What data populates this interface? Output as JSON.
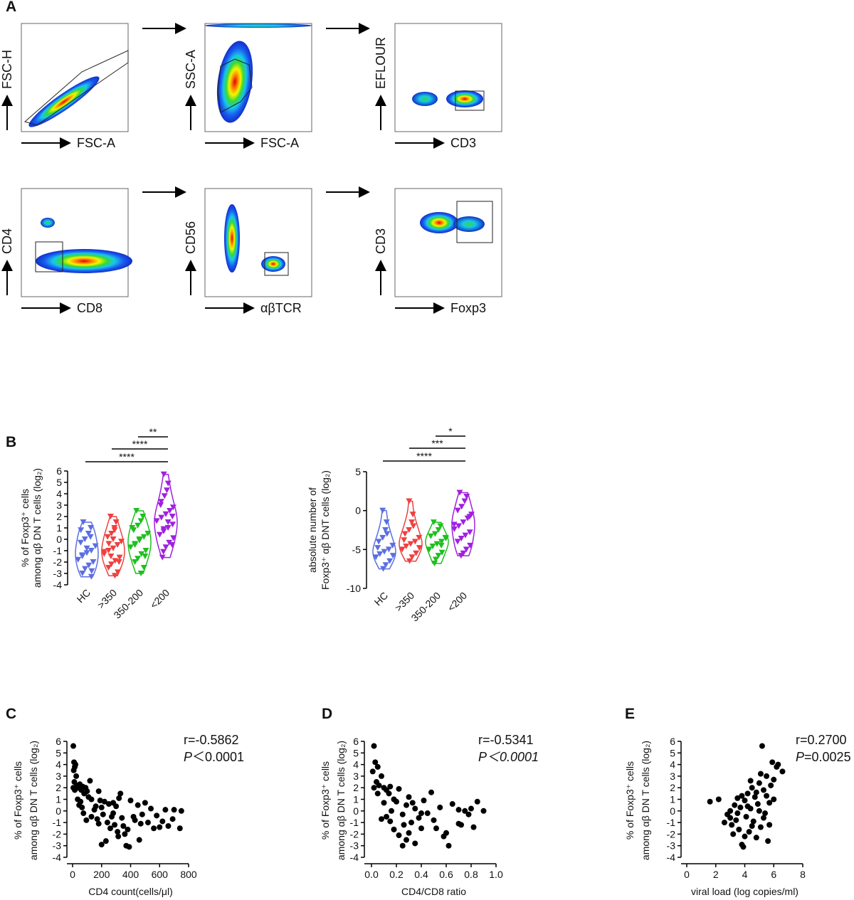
{
  "panel_labels": [
    "A",
    "B",
    "C",
    "D",
    "E"
  ],
  "flow_panels": [
    {
      "x_label": "FSC-A",
      "y_label": "FSC-H"
    },
    {
      "x_label": "FSC-A",
      "y_label": "SSC-A"
    },
    {
      "x_label": "CD3",
      "y_label": "EFLOUR"
    },
    {
      "x_label": "CD8",
      "y_label": "CD4"
    },
    {
      "x_label": "αβTCR",
      "y_label": "CD56"
    },
    {
      "x_label": "Foxp3",
      "y_label": "CD3"
    }
  ],
  "chart_data": [
    {
      "type": "violin",
      "y_label": [
        "% of Foxp3⁺ cells",
        "among αβ DN T cells (log₂)"
      ],
      "categories": [
        "HC",
        ">350",
        "350-200",
        "<200"
      ],
      "colors": [
        "#5b6ee1",
        "#ef4040",
        "#1fbf1f",
        "#a020e0"
      ],
      "values": [
        [
          1.5,
          1.0,
          0.5,
          0,
          -0.3,
          -0.6,
          -1.0,
          -1.2,
          -1.5,
          -1.8,
          -2.0,
          -2.3,
          -2.6,
          -3.0,
          -3.3,
          0.2,
          -0.8,
          -1.4,
          0.8,
          -2.8
        ],
        [
          2.0,
          1.5,
          1.0,
          0.5,
          0.2,
          -0.2,
          -0.5,
          -0.8,
          -1.0,
          -1.3,
          -1.6,
          -1.9,
          -2.2,
          -2.5,
          -2.9,
          -3.2,
          0.0,
          -0.4,
          -1.1,
          -2.0,
          0.8,
          -1.5
        ],
        [
          2.5,
          2.0,
          1.6,
          1.2,
          0.8,
          0.5,
          0.2,
          -0.1,
          -0.4,
          -0.7,
          -1.0,
          -1.3,
          -1.7,
          -2.0,
          -2.5,
          -3.0,
          0.0,
          -0.5,
          1.0,
          -1.5
        ],
        [
          5.7,
          4.9,
          4.3,
          3.8,
          3.3,
          2.8,
          2.5,
          2.2,
          1.9,
          1.6,
          1.3,
          1.0,
          0.7,
          0.4,
          0.1,
          -0.3,
          -0.7,
          -1.1,
          -1.6,
          2.0,
          1.5,
          0.9,
          3.0,
          -0.5
        ]
      ],
      "comparisons": [
        {
          "groups": [
            2,
            3
          ],
          "label": "**"
        },
        {
          "groups": [
            1,
            3
          ],
          "label": "****"
        },
        {
          "groups": [
            0,
            3
          ],
          "label": "****"
        }
      ],
      "ylim": [
        -4,
        6
      ],
      "yticks": [
        -4,
        -3,
        -2,
        -1,
        0,
        1,
        2,
        3,
        4,
        5,
        6
      ]
    },
    {
      "type": "violin",
      "y_label": [
        "absolute number of",
        "Foxp3⁺ αβ DNT cells (log₂)"
      ],
      "categories": [
        "HC",
        ">350",
        "350-200",
        "<200"
      ],
      "colors": [
        "#5b6ee1",
        "#ef4040",
        "#1fbf1f",
        "#a020e0"
      ],
      "values": [
        [
          0.0,
          -1.5,
          -2.5,
          -3.5,
          -4.0,
          -4.5,
          -5.0,
          -5.3,
          -5.6,
          -6.0,
          -6.5,
          -7.0,
          -7.5,
          -4.8,
          -5.8,
          -3.0
        ],
        [
          1.2,
          -0.5,
          -1.5,
          -2.5,
          -3.0,
          -3.5,
          -4.0,
          -4.3,
          -4.6,
          -5.0,
          -5.5,
          -6.0,
          -6.5,
          -3.8,
          -4.8,
          -2.0
        ],
        [
          -1.5,
          -2.0,
          -2.5,
          -3.0,
          -3.3,
          -3.6,
          -4.0,
          -4.3,
          -4.6,
          -5.0,
          -5.4,
          -5.8,
          -6.3,
          -6.8,
          -3.5,
          -4.5
        ],
        [
          2.3,
          1.8,
          1.2,
          0.5,
          0.0,
          -0.5,
          -1.0,
          -1.5,
          -2.0,
          -2.4,
          -2.8,
          -3.2,
          -3.6,
          -4.0,
          -4.5,
          -5.0,
          -5.5,
          -5.8,
          -1.8,
          -0.8
        ]
      ],
      "comparisons": [
        {
          "groups": [
            2,
            3
          ],
          "label": "*"
        },
        {
          "groups": [
            1,
            3
          ],
          "label": "***"
        },
        {
          "groups": [
            0,
            3
          ],
          "label": "****"
        }
      ],
      "ylim": [
        -10,
        5
      ],
      "yticks": [
        -10,
        -5,
        0,
        5
      ]
    },
    {
      "type": "scatter",
      "x_label": "CD4 count(cells/μl)",
      "y_label": [
        "% of Foxp3⁺ cells",
        "among αβ DN T cells (log₂)"
      ],
      "r_text": "r=-0.5862",
      "p_symbol": "P",
      "p_text": "＜0.0001",
      "p_italic": false,
      "color": "#000000",
      "x": [
        5,
        10,
        15,
        8,
        20,
        25,
        12,
        30,
        40,
        50,
        60,
        70,
        80,
        90,
        100,
        110,
        120,
        35,
        45,
        15,
        5,
        55,
        65,
        75,
        95,
        130,
        150,
        170,
        190,
        200,
        210,
        220,
        240,
        250,
        260,
        270,
        280,
        290,
        300,
        310,
        320,
        330,
        340,
        350,
        360,
        370,
        380,
        390,
        400,
        420,
        430,
        450,
        470,
        480,
        500,
        520,
        540,
        560,
        580,
        600,
        620,
        640,
        660,
        690,
        740,
        750,
        700,
        130,
        160,
        180,
        280,
        315,
        230,
        460,
        180,
        200
      ],
      "values": [
        5.6,
        4.2,
        3.8,
        3.5,
        4.0,
        3.0,
        2.5,
        2.2,
        2.0,
        2.3,
        1.8,
        2.1,
        1.5,
        2.0,
        1.7,
        1.2,
        2.6,
        1.0,
        0.5,
        1.8,
        2.0,
        0.8,
        0.3,
        -0.2,
        -0.8,
        -0.5,
        0.1,
        -0.7,
        0.9,
        0.3,
        -0.3,
        0.8,
        -1.0,
        0.6,
        -1.5,
        -0.5,
        -0.2,
        -1.2,
        0.4,
        -1.8,
        1.1,
        1.5,
        -0.6,
        -1.3,
        -2.0,
        -3.0,
        -1.6,
        -3.1,
        0.9,
        -0.5,
        -0.8,
        0.5,
        -1.1,
        -0.3,
        0.7,
        -1.0,
        0.2,
        -1.5,
        -0.4,
        -1.4,
        -0.9,
        0.1,
        -1.3,
        -0.7,
        -1.5,
        0.0,
        0.1,
        1.0,
        0.4,
        1.7,
        0.7,
        -2.2,
        -2.6,
        -2.5,
        -1.1,
        -2.9
      ],
      "xlim": [
        0,
        800
      ],
      "xticks": [
        0,
        200,
        400,
        600,
        800
      ],
      "ylim": [
        -4,
        6
      ],
      "yticks": [
        -4,
        -3,
        -2,
        -1,
        0,
        1,
        2,
        3,
        4,
        5,
        6
      ]
    },
    {
      "type": "scatter",
      "x_label": "CD4/CD8 ratio",
      "y_label": [
        "% of Foxp3⁺ cells",
        "among αβ DN T cells (log₂)"
      ],
      "r_text": "r=-0.5341",
      "p_symbol": "P",
      "p_text": "＜0.0001",
      "p_italic": true,
      "color": "#000000",
      "x": [
        0.02,
        0.03,
        0.05,
        0.01,
        0.08,
        0.04,
        0.06,
        0.1,
        0.12,
        0.02,
        0.05,
        0.15,
        0.18,
        0.2,
        0.22,
        0.25,
        0.28,
        0.3,
        0.32,
        0.35,
        0.38,
        0.4,
        0.42,
        0.45,
        0.48,
        0.5,
        0.55,
        0.6,
        0.62,
        0.65,
        0.7,
        0.72,
        0.75,
        0.8,
        0.82,
        0.9,
        0.78,
        0.12,
        0.15,
        0.18,
        0.22,
        0.25,
        0.28,
        0.3,
        0.35,
        0.08,
        0.1,
        0.14,
        0.16,
        0.26,
        0.33,
        0.4,
        0.52,
        0.58,
        0.85,
        0.7
      ],
      "values": [
        5.6,
        4.2,
        3.8,
        3.4,
        3.0,
        2.5,
        2.2,
        2.0,
        1.8,
        2.0,
        1.5,
        2.1,
        1.0,
        0.8,
        1.9,
        -0.3,
        0.5,
        1.2,
        -1.0,
        0.2,
        -0.6,
        -1.5,
        0.9,
        -0.2,
        1.6,
        -0.8,
        0.3,
        -1.9,
        -3.0,
        0.6,
        0.1,
        -1.2,
        0.0,
        0.2,
        -1.4,
        0.0,
        -0.3,
        -0.5,
        -0.9,
        -1.6,
        -2.1,
        -3.0,
        -2.5,
        -1.9,
        -2.8,
        -0.7,
        0.7,
        1.5,
        0.0,
        -1.2,
        0.7,
        -0.2,
        -1.5,
        -2.2,
        0.8,
        -1.1
      ],
      "xlim": [
        0,
        1
      ],
      "xticks": [
        {
          "value": 0,
          "label": "0.0"
        },
        {
          "value": 0.2,
          "label": "0.2"
        },
        {
          "value": 0.4,
          "label": "0.4"
        },
        {
          "value": 0.6,
          "label": "0.6"
        },
        {
          "value": 0.8,
          "label": "0.8"
        },
        {
          "value": 1,
          "label": "1.0"
        }
      ],
      "ylim": [
        -4,
        6
      ],
      "yticks": [
        -4,
        -3,
        -2,
        -1,
        0,
        1,
        2,
        3,
        4,
        5,
        6
      ]
    },
    {
      "type": "scatter",
      "x_label": "viral load (log copies/ml)",
      "y_label": [
        "% of Foxp3⁺ cells",
        "among αβ DN T cells (log₂)"
      ],
      "r_text": "r=0.2700",
      "p_symbol": "P",
      "p_text": "=0.0025",
      "p_italic": false,
      "color": "#000000",
      "x": [
        1.6,
        2.2,
        2.8,
        3.0,
        3.1,
        3.2,
        3.3,
        3.4,
        3.5,
        3.6,
        3.7,
        3.8,
        3.9,
        4.0,
        4.1,
        4.2,
        4.3,
        4.4,
        4.5,
        4.6,
        4.7,
        4.8,
        4.9,
        5.0,
        5.1,
        5.2,
        5.3,
        5.4,
        5.5,
        5.6,
        5.7,
        5.8,
        5.9,
        6.0,
        6.2,
        6.3,
        6.6,
        5.0,
        4.5,
        4.0,
        3.5,
        4.8,
        5.3,
        5.5,
        6.0,
        4.2,
        3.8,
        2.6,
        3.0,
        4.4,
        5.7,
        5.1
      ],
      "values": [
        0.8,
        1.0,
        -0.3,
        0.0,
        -1.2,
        -2.0,
        0.5,
        -0.8,
        1.1,
        -1.6,
        0.3,
        -2.9,
        -3.1,
        0.9,
        -0.5,
        1.5,
        -1.8,
        0.2,
        2.0,
        -0.9,
        1.2,
        -2.3,
        0.6,
        2.4,
        -1.4,
        5.6,
        1.8,
        -0.2,
        3.0,
        -2.6,
        0.7,
        2.2,
        4.2,
        1.0,
        3.8,
        4.0,
        3.4,
        0.0,
        -1.3,
        -2.2,
        -0.2,
        1.6,
        -0.6,
        1.3,
        2.7,
        0.4,
        1.3,
        -1.0,
        -0.6,
        2.6,
        -1.2,
        3.2
      ],
      "xlim": [
        0,
        8
      ],
      "xticks": [
        0,
        2,
        4,
        6,
        8
      ],
      "ylim": [
        -4,
        6
      ],
      "yticks": [
        -4,
        -3,
        -2,
        -1,
        0,
        1,
        2,
        3,
        4,
        5,
        6
      ]
    }
  ]
}
